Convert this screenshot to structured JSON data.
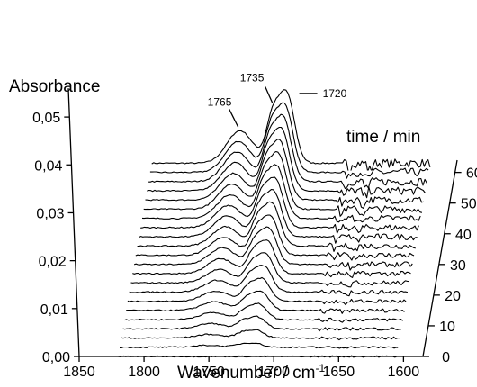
{
  "chart_data": {
    "type": "line",
    "subtype": "3d-waterfall",
    "xlabel": "Wavenumber / cm",
    "xlabel_sup": "-1",
    "ylabel": "Absorbance",
    "zlabel": "time / min",
    "xlim": [
      1850,
      1585
    ],
    "xlim_traces": [
      1820,
      1605
    ],
    "x_ticks": [
      1850,
      1800,
      1750,
      1700,
      1650,
      1600
    ],
    "y_ticks": [
      "0,00",
      "0,01",
      "0,02",
      "0,03",
      "0,04",
      "0,05"
    ],
    "ylim": [
      0.0,
      0.055
    ],
    "z_ticks": [
      0,
      10,
      20,
      30,
      40,
      50,
      60
    ],
    "zlim": [
      0,
      64
    ],
    "num_traces": 22,
    "time_step_min": 3,
    "peaks": [
      {
        "label": "1765",
        "center": 1752,
        "width": 10,
        "amp_at_60": 0.0065
      },
      {
        "label": "1735",
        "center": 1727,
        "width": 5,
        "amp_at_60": 0.0085
      },
      {
        "label": "1720",
        "center": 1716,
        "width": 6,
        "amp_at_60": 0.0137
      }
    ],
    "annotations": [
      "1765",
      "1735",
      "1720"
    ],
    "noise_region": [
      1672,
      1605
    ]
  }
}
